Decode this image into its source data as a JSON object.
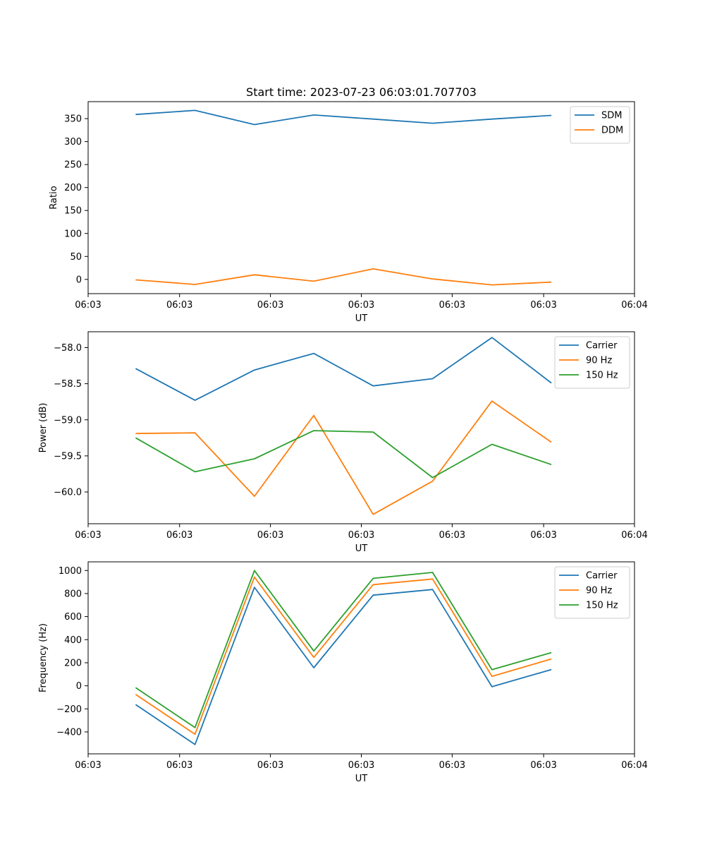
{
  "colors": {
    "blue": "#1f77b4",
    "orange": "#ff7f0e",
    "green": "#2ca02c"
  },
  "chart_data": [
    {
      "type": "line",
      "title": "Start time: 2023-07-23 06:03:01.707703",
      "xlabel": "UT",
      "ylabel": "Ratio",
      "x": [
        1,
        2,
        3,
        4,
        5,
        6,
        7,
        8
      ],
      "xlim": [
        0.2,
        9.4
      ],
      "xticks": [
        0.2,
        1.74,
        3.27,
        4.8,
        6.33,
        7.87,
        9.4
      ],
      "xtick_labels": [
        "06:03",
        "06:03",
        "06:03",
        "06:03",
        "06:03",
        "06:03",
        "06:04"
      ],
      "ylim": [
        -31,
        387
      ],
      "yticks": [
        0,
        50,
        100,
        150,
        200,
        250,
        300,
        350
      ],
      "ytick_labels": [
        "0",
        "50",
        "100",
        "150",
        "200",
        "250",
        "300",
        "350"
      ],
      "legend": "top-right",
      "series": [
        {
          "name": "SDM",
          "color": "#1f77b4",
          "values": [
            359,
            368,
            337,
            358,
            349,
            340,
            349,
            357
          ]
        },
        {
          "name": "DDM",
          "color": "#ff7f0e",
          "values": [
            -1,
            -11,
            10,
            -4,
            23,
            1,
            -12,
            -6
          ]
        }
      ]
    },
    {
      "type": "line",
      "title": "",
      "xlabel": "UT",
      "ylabel": "Power (dB)",
      "x": [
        1,
        2,
        3,
        4,
        5,
        6,
        7,
        8
      ],
      "xlim": [
        0.2,
        9.4
      ],
      "xticks": [
        0.2,
        1.74,
        3.27,
        4.8,
        6.33,
        7.87,
        9.4
      ],
      "xtick_labels": [
        "06:03",
        "06:03",
        "06:03",
        "06:03",
        "06:03",
        "06:03",
        "06:04"
      ],
      "ylim": [
        -60.44,
        -57.78
      ],
      "yticks": [
        -60.0,
        -59.5,
        -59.0,
        -58.5,
        -58.0
      ],
      "ytick_labels": [
        "−60.0",
        "−59.5",
        "−59.0",
        "−58.5",
        "−58.0"
      ],
      "legend": "top-right",
      "series": [
        {
          "name": "Carrier",
          "color": "#1f77b4",
          "values": [
            -58.29,
            -58.73,
            -58.31,
            -58.08,
            -58.53,
            -58.43,
            -57.86,
            -58.49
          ]
        },
        {
          "name": "90 Hz",
          "color": "#ff7f0e",
          "values": [
            -59.19,
            -59.18,
            -60.06,
            -58.94,
            -60.31,
            -59.85,
            -58.74,
            -59.31
          ]
        },
        {
          "name": "150 Hz",
          "color": "#2ca02c",
          "values": [
            -59.25,
            -59.72,
            -59.54,
            -59.15,
            -59.17,
            -59.8,
            -59.34,
            -59.62
          ]
        }
      ]
    },
    {
      "type": "line",
      "title": "",
      "xlabel": "UT",
      "ylabel": "Frequency (Hz)",
      "x": [
        1,
        2,
        3,
        4,
        5,
        6,
        7,
        8
      ],
      "xlim": [
        0.2,
        9.4
      ],
      "xticks": [
        0.2,
        1.74,
        3.27,
        4.8,
        6.33,
        7.87,
        9.4
      ],
      "xtick_labels": [
        "06:03",
        "06:03",
        "06:03",
        "06:03",
        "06:03",
        "06:03",
        "06:04"
      ],
      "ylim": [
        -590,
        1075
      ],
      "yticks": [
        -400,
        -200,
        0,
        200,
        400,
        600,
        800,
        1000
      ],
      "ytick_labels": [
        "−400",
        "−200",
        "0",
        "200",
        "400",
        "600",
        "800",
        "1000"
      ],
      "legend": "top-right",
      "series": [
        {
          "name": "Carrier",
          "color": "#1f77b4",
          "values": [
            -163,
            -509,
            854,
            157,
            786,
            835,
            -8,
            141
          ]
        },
        {
          "name": "90 Hz",
          "color": "#ff7f0e",
          "values": [
            -75,
            -420,
            943,
            246,
            877,
            926,
            82,
            233
          ]
        },
        {
          "name": "150 Hz",
          "color": "#2ca02c",
          "values": [
            -16,
            -362,
            1000,
            302,
            932,
            983,
            140,
            288
          ]
        }
      ]
    }
  ]
}
